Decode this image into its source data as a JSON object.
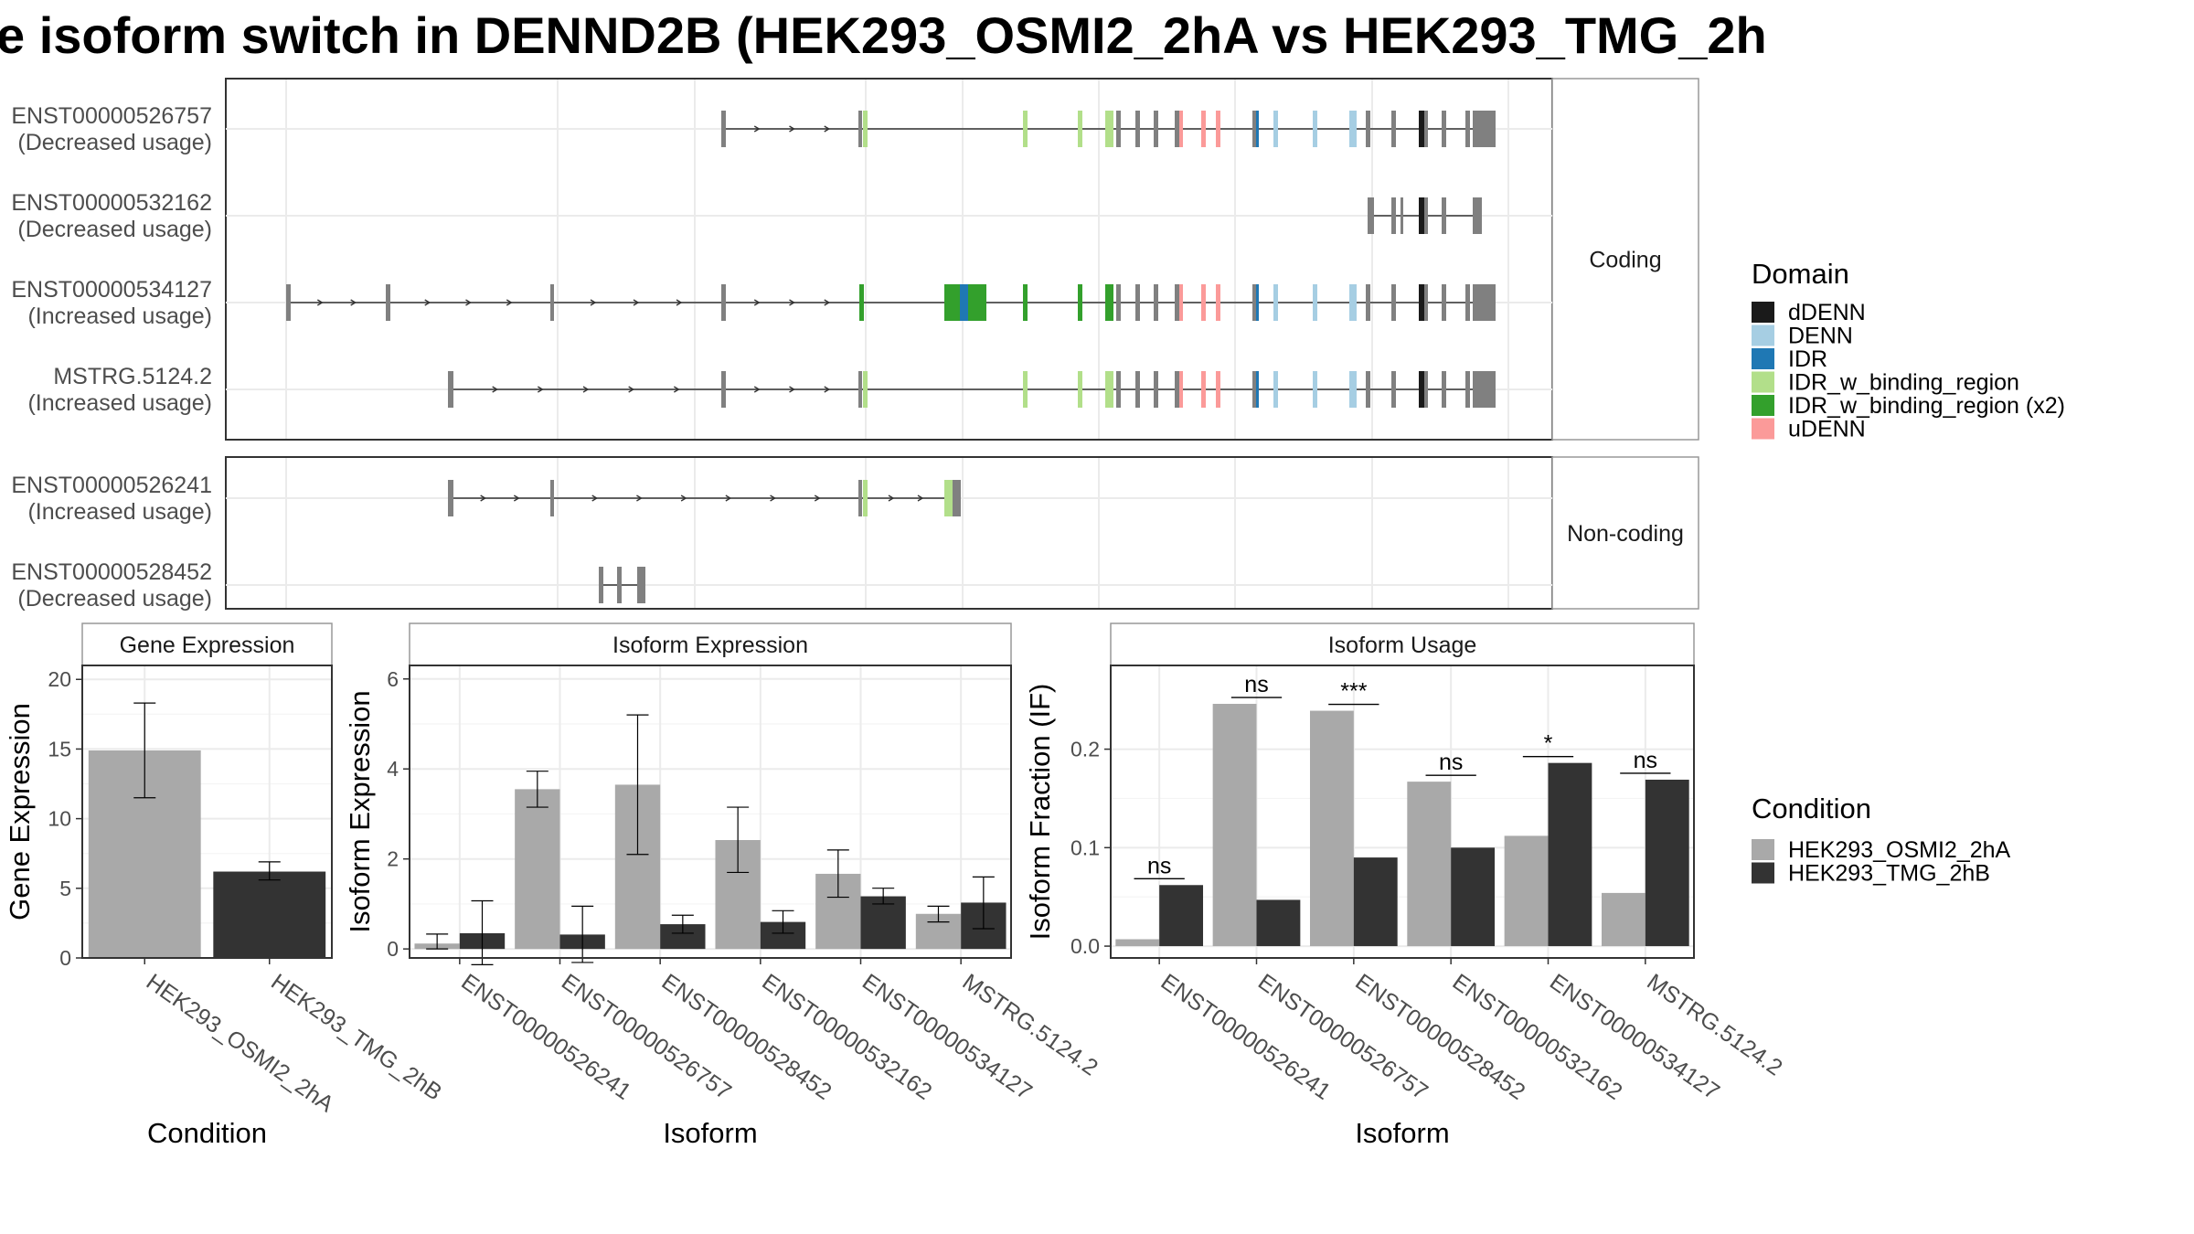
{
  "title": "e isoform switch in DENND2B (HEK293_OSMI2_2hA vs HEK293_TMG_2h",
  "colors": {
    "dDENN": "#1a1a1a",
    "DENN": "#a6cee3",
    "IDR": "#1f78b4",
    "IDR_w_binding_region": "#b2df8a",
    "IDR_w_binding_region (x2)": "#33a02c",
    "uDENN": "#fb9a99",
    "exon": "#808080",
    "cond1": "#a9a9a9",
    "cond2": "#333333"
  },
  "chart_data": [
    {
      "type": "other",
      "title": "",
      "facets": [
        "Coding",
        "Non-coding"
      ],
      "transcripts": [
        {
          "id": "ENST00000526757",
          "usage": "(Decreased usage)",
          "facet": "Coding"
        },
        {
          "id": "ENST00000532162",
          "usage": "(Decreased usage)",
          "facet": "Coding"
        },
        {
          "id": "ENST00000534127",
          "usage": "(Increased usage)",
          "facet": "Coding"
        },
        {
          "id": "MSTRG.5124.2",
          "usage": "(Increased usage)",
          "facet": "Coding"
        },
        {
          "id": "ENST00000526241",
          "usage": "(Increased usage)",
          "facet": "Non-coding"
        },
        {
          "id": "ENST00000528452",
          "usage": "(Decreased usage)",
          "facet": "Non-coding"
        }
      ],
      "legend_title": "Domain",
      "legend": [
        "dDENN",
        "DENN",
        "IDR",
        "IDR_w_binding_region",
        "IDR_w_binding_region (x2)",
        "uDENN"
      ]
    },
    {
      "type": "bar",
      "title": "Gene Expression",
      "xlabel": "Condition",
      "ylabel": "Gene Expression",
      "ylim": [
        0,
        21
      ],
      "yticks": [
        0,
        5,
        10,
        15,
        20
      ],
      "categories": [
        "HEK293_OSMI2_2hA",
        "HEK293_TMG_2hB"
      ],
      "values": [
        14.9,
        6.2
      ],
      "errors": [
        [
          11.5,
          18.3
        ],
        [
          5.6,
          6.9
        ]
      ]
    },
    {
      "type": "bar",
      "title": "Isoform Expression",
      "xlabel": "Isoform",
      "ylabel": "Isoform Expression",
      "ylim": [
        -0.2,
        6.3
      ],
      "yticks": [
        0,
        2,
        4,
        6
      ],
      "categories": [
        "ENST00000526241",
        "ENST00000526757",
        "ENST00000528452",
        "ENST00000532162",
        "ENST00000534127",
        "MSTRG.5124.2"
      ],
      "series": [
        {
          "name": "HEK293_OSMI2_2hA",
          "values": [
            0.12,
            3.55,
            3.65,
            2.42,
            1.67,
            0.78
          ],
          "errors": [
            [
              0.0,
              0.33
            ],
            [
              3.15,
              3.95
            ],
            [
              2.1,
              5.2
            ],
            [
              1.7,
              3.15
            ],
            [
              1.15,
              2.2
            ],
            [
              0.6,
              0.95
            ]
          ]
        },
        {
          "name": "HEK293_TMG_2hB",
          "values": [
            0.35,
            0.32,
            0.55,
            0.6,
            1.17,
            1.03
          ],
          "errors": [
            [
              -0.35,
              1.07
            ],
            [
              -0.3,
              0.95
            ],
            [
              0.35,
              0.75
            ],
            [
              0.35,
              0.85
            ],
            [
              1.0,
              1.35
            ],
            [
              0.45,
              1.6
            ]
          ]
        }
      ]
    },
    {
      "type": "bar",
      "title": "Isoform Usage",
      "xlabel": "Isoform",
      "ylabel": "Isoform Fraction (IF)",
      "ylim": [
        -0.012,
        0.285
      ],
      "yticks": [
        "0.0",
        "0.1",
        "0.2"
      ],
      "categories": [
        "ENST00000526241",
        "ENST00000526757",
        "ENST00000528452",
        "ENST00000532162",
        "ENST00000534127",
        "MSTRG.5124.2"
      ],
      "series": [
        {
          "name": "HEK293_OSMI2_2hA",
          "values": [
            0.007,
            0.246,
            0.239,
            0.167,
            0.112,
            0.054
          ]
        },
        {
          "name": "HEK293_TMG_2hB",
          "values": [
            0.062,
            0.047,
            0.09,
            0.1,
            0.186,
            0.169
          ]
        }
      ],
      "significance": [
        "ns",
        "ns",
        "***",
        "ns",
        "*",
        "ns"
      ]
    }
  ],
  "condition_legend": {
    "title": "Condition",
    "items": [
      "HEK293_OSMI2_2hA",
      "HEK293_TMG_2hB"
    ]
  }
}
